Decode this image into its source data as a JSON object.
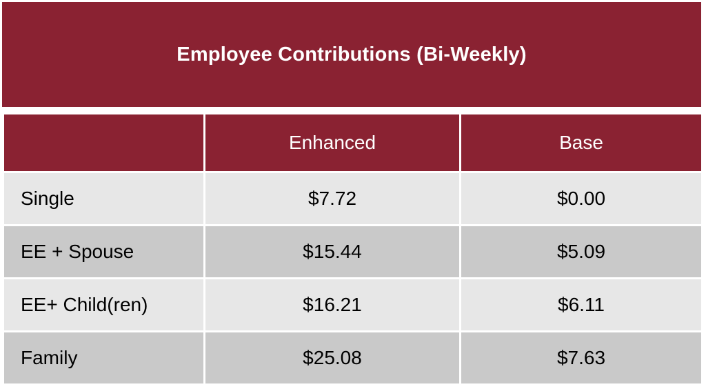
{
  "title": "Employee Contributions (Bi-Weekly)",
  "columns": [
    "",
    "Enhanced",
    "Base"
  ],
  "rows": [
    {
      "label": "Single",
      "enhanced": "$7.72",
      "base": "$0.00"
    },
    {
      "label": "EE + Spouse",
      "enhanced": "$15.44",
      "base": "$5.09"
    },
    {
      "label": "EE+ Child(ren)",
      "enhanced": "$16.21",
      "base": "$6.11"
    },
    {
      "label": "Family",
      "enhanced": "$25.08",
      "base": "$7.63"
    }
  ],
  "colors": {
    "header_bg": "#8a2232",
    "header_text": "#ffffff",
    "row_light": "#e7e7e7",
    "row_dark": "#c9c9c9"
  }
}
